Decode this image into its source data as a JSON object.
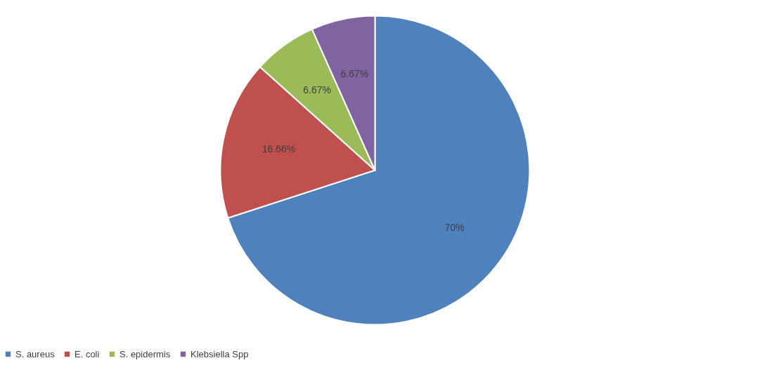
{
  "chart_data": {
    "type": "pie",
    "categories": [
      "S. aureus",
      "E. coli",
      "S. epidermis",
      "Klebsiella Spp"
    ],
    "values": [
      70,
      16.66,
      6.67,
      6.67
    ],
    "colors": [
      "#4f81bd",
      "#c0504d",
      "#9bbb59",
      "#8064a2"
    ],
    "value_labels": [
      "70%",
      "16.66%",
      "6.67%",
      "6.67%"
    ],
    "legend": "bottom"
  }
}
